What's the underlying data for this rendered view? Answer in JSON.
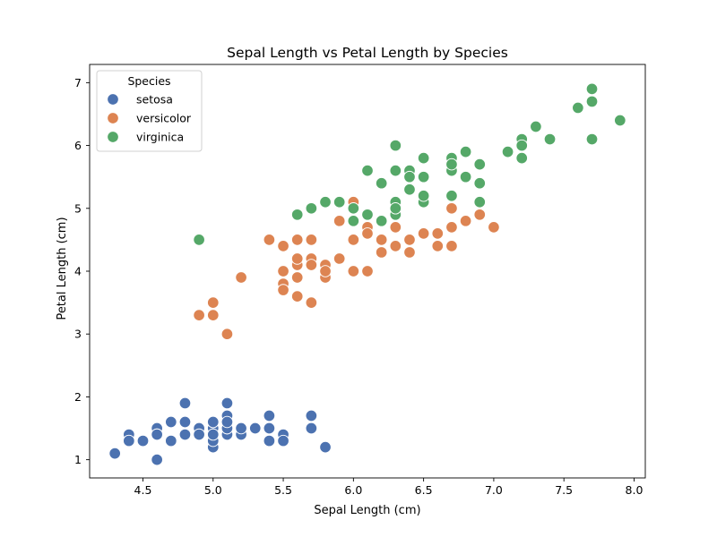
{
  "chart_data": {
    "type": "scatter",
    "title": "Sepal Length vs Petal Length by Species",
    "xlabel": "Sepal Length (cm)",
    "ylabel": "Petal Length (cm)",
    "xlim": [
      4.12,
      8.08
    ],
    "ylim": [
      0.71,
      7.29
    ],
    "xticks": [
      4.5,
      5.0,
      5.5,
      6.0,
      6.5,
      7.0,
      7.5,
      8.0
    ],
    "xtick_labels": [
      "4.5",
      "5.0",
      "5.5",
      "6.0",
      "6.5",
      "7.0",
      "7.5",
      "8.0"
    ],
    "yticks": [
      1,
      2,
      3,
      4,
      5,
      6,
      7
    ],
    "ytick_labels": [
      "1",
      "2",
      "3",
      "4",
      "5",
      "6",
      "7"
    ],
    "grid": false,
    "legend": {
      "title": "Species",
      "placement": "top-left"
    },
    "series": [
      {
        "name": "setosa",
        "color": "#4c72b0",
        "x": [
          5.1,
          4.9,
          4.7,
          4.6,
          5.0,
          5.4,
          4.6,
          5.0,
          4.4,
          4.9,
          5.4,
          4.8,
          4.8,
          4.3,
          5.8,
          5.7,
          5.4,
          5.1,
          5.7,
          5.1,
          5.4,
          5.1,
          4.6,
          5.1,
          4.8,
          5.0,
          5.0,
          5.2,
          5.2,
          4.7,
          4.8,
          5.4,
          5.2,
          5.5,
          4.9,
          5.0,
          5.5,
          4.9,
          4.4,
          5.1,
          5.0,
          4.5,
          4.4,
          5.0,
          5.1,
          4.8,
          5.1,
          4.6,
          5.3,
          5.0
        ],
        "y": [
          1.4,
          1.4,
          1.3,
          1.5,
          1.4,
          1.7,
          1.4,
          1.5,
          1.4,
          1.5,
          1.5,
          1.6,
          1.4,
          1.1,
          1.2,
          1.5,
          1.3,
          1.4,
          1.7,
          1.5,
          1.7,
          1.5,
          1.0,
          1.7,
          1.9,
          1.6,
          1.6,
          1.5,
          1.4,
          1.6,
          1.6,
          1.5,
          1.5,
          1.4,
          1.5,
          1.2,
          1.3,
          1.4,
          1.3,
          1.5,
          1.3,
          1.3,
          1.3,
          1.6,
          1.9,
          1.4,
          1.6,
          1.4,
          1.5,
          1.4
        ]
      },
      {
        "name": "versicolor",
        "color": "#dd8452",
        "x": [
          7.0,
          6.4,
          6.9,
          5.5,
          6.5,
          5.7,
          6.3,
          4.9,
          6.6,
          5.2,
          5.0,
          5.9,
          6.0,
          6.1,
          5.6,
          6.7,
          5.6,
          5.8,
          6.2,
          5.6,
          5.9,
          6.1,
          6.3,
          6.1,
          6.4,
          6.6,
          6.8,
          6.7,
          6.0,
          5.7,
          5.5,
          5.5,
          5.8,
          6.0,
          5.4,
          6.0,
          6.7,
          6.3,
          5.6,
          5.5,
          5.5,
          6.1,
          5.8,
          5.0,
          5.6,
          5.7,
          5.7,
          6.2,
          5.1,
          5.7
        ],
        "y": [
          4.7,
          4.5,
          4.9,
          4.0,
          4.6,
          4.5,
          4.7,
          3.3,
          4.6,
          3.9,
          3.5,
          4.2,
          4.0,
          4.7,
          3.6,
          4.4,
          4.5,
          4.1,
          4.5,
          3.9,
          4.8,
          4.0,
          4.9,
          4.7,
          4.3,
          4.4,
          4.8,
          5.0,
          4.5,
          3.5,
          3.8,
          3.7,
          3.9,
          5.1,
          4.5,
          4.5,
          4.7,
          4.4,
          4.1,
          4.0,
          4.4,
          4.6,
          4.0,
          3.3,
          4.2,
          4.2,
          4.2,
          4.3,
          3.0,
          4.1
        ]
      },
      {
        "name": "virginica",
        "color": "#55a868",
        "x": [
          6.3,
          5.8,
          7.1,
          6.3,
          6.5,
          7.6,
          4.9,
          7.3,
          6.7,
          7.2,
          6.5,
          6.4,
          6.8,
          5.7,
          5.8,
          6.4,
          6.5,
          7.7,
          7.7,
          6.0,
          6.9,
          5.6,
          7.7,
          6.3,
          6.7,
          7.2,
          6.2,
          6.1,
          6.4,
          7.2,
          7.4,
          7.9,
          6.4,
          6.3,
          6.1,
          7.7,
          6.3,
          6.4,
          6.0,
          6.9,
          6.7,
          6.9,
          5.8,
          6.8,
          6.7,
          6.7,
          6.3,
          6.5,
          6.2,
          5.9
        ],
        "y": [
          6.0,
          5.1,
          5.9,
          5.6,
          5.8,
          6.6,
          4.5,
          6.3,
          5.8,
          6.1,
          5.1,
          5.3,
          5.5,
          5.0,
          5.1,
          5.3,
          5.5,
          6.7,
          6.9,
          5.0,
          5.7,
          4.9,
          6.7,
          4.9,
          5.7,
          6.0,
          4.8,
          4.9,
          5.6,
          5.8,
          6.1,
          6.4,
          5.6,
          5.1,
          5.6,
          6.1,
          5.6,
          5.5,
          4.8,
          5.4,
          5.6,
          5.1,
          5.1,
          5.9,
          5.7,
          5.2,
          5.0,
          5.2,
          5.4,
          5.1
        ]
      }
    ]
  }
}
